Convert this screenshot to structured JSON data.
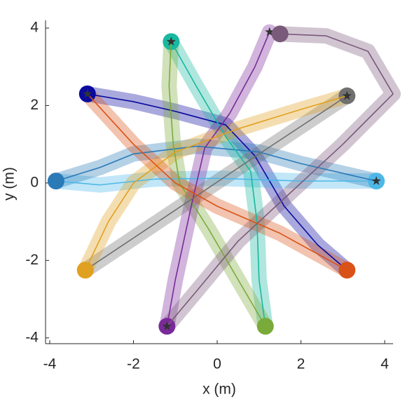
{
  "chart_data": {
    "type": "trajectory",
    "xlabel": "x (m)",
    "ylabel": "y (m)",
    "xlim": [
      -4.1,
      4.2
    ],
    "ylim": [
      -4.15,
      4.2
    ],
    "xticks": [
      -4,
      -2,
      0,
      2,
      4
    ],
    "yticks": [
      -4,
      -2,
      0,
      2,
      4
    ],
    "series": [
      {
        "color": "#0a0a9e",
        "x": [
          -3.1,
          -2,
          -1,
          0.2,
          0.9,
          1.6,
          2.4,
          3.1
        ],
        "values": [
          2.3,
          2.1,
          1.85,
          1.5,
          0.7,
          -0.6,
          -1.6,
          -2.25
        ]
      },
      {
        "color": "#4db8e8",
        "x": [
          3.8,
          2,
          0,
          -1.5,
          -2.8,
          -3.85
        ],
        "values": [
          0.05,
          0.05,
          0.12,
          0.1,
          -0.05,
          0.05
        ]
      },
      {
        "color": "#2a7ab8",
        "x": [
          -3.85,
          -2.8,
          -2,
          -0.5,
          1,
          2,
          3.8
        ],
        "values": [
          0.05,
          0.4,
          0.75,
          0.95,
          0.8,
          0.5,
          0.05
        ]
      },
      {
        "color": "#1ab8a0",
        "x": [
          -1.1,
          -0.5,
          0.2,
          0.8,
          0.95,
          1.0,
          1.15
        ],
        "values": [
          3.65,
          2.5,
          1.2,
          0.3,
          -1,
          -2.5,
          -3.7
        ]
      },
      {
        "color": "#7aaa3a",
        "x": [
          1.15,
          0.5,
          -0.2,
          -0.9,
          -1.05,
          -1.15,
          -1.1
        ],
        "values": [
          -3.7,
          -2.5,
          -1.2,
          0,
          1,
          2.5,
          3.65
        ]
      },
      {
        "color": "#7a2a9a",
        "x": [
          -1.2,
          -1.0,
          -0.6,
          -0.3,
          0.3,
          0.9,
          1.25
        ],
        "values": [
          -3.7,
          -2.5,
          -0.5,
          0.9,
          1.8,
          3,
          3.9
        ]
      },
      {
        "color": "#7a5a7a",
        "x": [
          1.5,
          2.6,
          3.6,
          4.2,
          3,
          1.5,
          0.5,
          -0.5,
          -1.2
        ],
        "values": [
          3.85,
          3.8,
          3.4,
          2.3,
          1,
          -0.5,
          -1.5,
          -2.8,
          -3.7
        ]
      },
      {
        "color": "#707070",
        "x": [
          3.1,
          1,
          -1,
          -3.15
        ],
        "values": [
          2.25,
          0.75,
          -0.7,
          -2.25
        ]
      },
      {
        "color": "#e0a020",
        "x": [
          -3.15,
          -2.6,
          -2,
          -1,
          0.5,
          2,
          3.1
        ],
        "values": [
          -2.25,
          -1,
          0,
          0.8,
          1.4,
          1.9,
          2.25
        ]
      },
      {
        "color": "#d95319",
        "x": [
          3.1,
          1.5,
          0,
          -1,
          -2,
          -3.1
        ],
        "values": [
          -2.25,
          -1.3,
          -0.6,
          0,
          1,
          2.3
        ]
      }
    ]
  }
}
